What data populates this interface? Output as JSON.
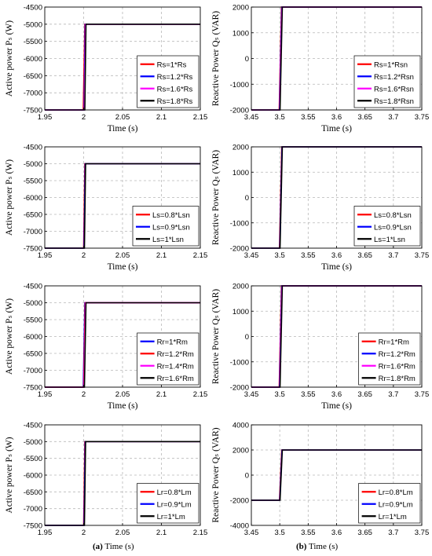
{
  "captions": {
    "a_label": "(a)",
    "a_text": "Time (s)",
    "b_label": "(b)",
    "b_text": "Time (s)"
  },
  "chart_data": [
    {
      "type": "line",
      "xlabel": "Time (s)",
      "ylabel": "Active power Pₛ (W)",
      "xlim": [
        1.95,
        2.15
      ],
      "ylim": [
        -7500,
        -4500
      ],
      "xticks": [
        1.95,
        2,
        2.05,
        2.1,
        2.15
      ],
      "xtick_labels": [
        "1.95",
        "2",
        "2.05",
        "2.1",
        "2.15"
      ],
      "yticks": [
        -7500,
        -7000,
        -6500,
        -6000,
        -5500,
        -5000,
        -4500
      ],
      "ytick_labels": [
        "-7500",
        "-7000",
        "-6500",
        "-6000",
        "-5500",
        "-5000",
        "-4500"
      ],
      "grid": true,
      "legend_position": "bottom-right",
      "series": [
        {
          "name": "Rs=1*Rs",
          "color": "#ff0000",
          "x": [
            1.95,
            1.9995,
            2.0015,
            2.15
          ],
          "y": [
            -7500,
            -7500,
            -5000,
            -5000
          ]
        },
        {
          "name": "Rs=1.2*Rs",
          "color": "#0000ff",
          "x": [
            1.95,
            2.0005,
            2.002,
            2.15
          ],
          "y": [
            -7500,
            -7500,
            -5000,
            -5000
          ]
        },
        {
          "name": "Rs=1.6*Rs",
          "color": "#ff00ff",
          "x": [
            1.95,
            2.001,
            2.0025,
            2.15
          ],
          "y": [
            -7500,
            -7500,
            -5000,
            -5000
          ]
        },
        {
          "name": "Rs=1.8*Rs",
          "color": "#000000",
          "x": [
            1.95,
            2.0015,
            2.003,
            2.15
          ],
          "y": [
            -7500,
            -7500,
            -5000,
            -5000
          ]
        }
      ]
    },
    {
      "type": "line",
      "xlabel": "Time (s)",
      "ylabel": "Reactive Power Qₛ (VAR)",
      "xlim": [
        3.45,
        3.75
      ],
      "ylim": [
        -2000,
        2000
      ],
      "xticks": [
        3.45,
        3.5,
        3.55,
        3.6,
        3.65,
        3.7,
        3.75
      ],
      "xtick_labels": [
        "3.45",
        "3.5",
        "3.55",
        "3.6",
        "3.65",
        "3.7",
        "3.75"
      ],
      "yticks": [
        -2000,
        -1000,
        0,
        1000,
        2000
      ],
      "ytick_labels": [
        "-2000",
        "-1000",
        "0",
        "1000",
        "2000"
      ],
      "grid": true,
      "legend_position": "bottom-right",
      "series": [
        {
          "name": "Rs=1*Rsn",
          "color": "#ff0000",
          "x": [
            3.45,
            3.499,
            3.503,
            3.75
          ],
          "y": [
            -2000,
            -2000,
            2000,
            2000
          ]
        },
        {
          "name": "Rs=1.2*Rsn",
          "color": "#0000ff",
          "x": [
            3.45,
            3.4995,
            3.5035,
            3.75
          ],
          "y": [
            -2000,
            -2000,
            2000,
            2000
          ]
        },
        {
          "name": "Rs=1.6*Rsn",
          "color": "#ff00ff",
          "x": [
            3.45,
            3.5,
            3.504,
            3.75
          ],
          "y": [
            -2000,
            -2000,
            2000,
            2000
          ]
        },
        {
          "name": "Rs=1.8*Rsn",
          "color": "#000000",
          "x": [
            3.45,
            3.5005,
            3.5045,
            3.75
          ],
          "y": [
            -2000,
            -2000,
            2000,
            2000
          ]
        }
      ]
    },
    {
      "type": "line",
      "xlabel": "Time (s)",
      "ylabel": "Active power Pₛ (W)",
      "xlim": [
        1.95,
        2.15
      ],
      "ylim": [
        -7500,
        -4500
      ],
      "xticks": [
        1.95,
        2,
        2.05,
        2.1,
        2.15
      ],
      "xtick_labels": [
        "1.95",
        "2",
        "2.05",
        "2.1",
        "2.15"
      ],
      "yticks": [
        -7500,
        -7000,
        -6500,
        -6000,
        -5500,
        -5000,
        -4500
      ],
      "ytick_labels": [
        "-7500",
        "-7000",
        "-6500",
        "-6000",
        "-5500",
        "-5000",
        "-4500"
      ],
      "grid": true,
      "legend_position": "bottom-right",
      "series": [
        {
          "name": "Ls=0.8*Lsn",
          "color": "#ff0000",
          "x": [
            1.95,
            2.0,
            2.0015,
            2.15
          ],
          "y": [
            -7500,
            -7500,
            -5000,
            -5000
          ]
        },
        {
          "name": "Ls=0.9*Lsn",
          "color": "#0000ff",
          "x": [
            1.95,
            2.0005,
            2.002,
            2.15
          ],
          "y": [
            -7500,
            -7500,
            -5000,
            -5000
          ]
        },
        {
          "name": "Ls=1*Lsn",
          "color": "#000000",
          "x": [
            1.95,
            2.001,
            2.0025,
            2.15
          ],
          "y": [
            -7500,
            -7500,
            -5000,
            -5000
          ]
        }
      ]
    },
    {
      "type": "line",
      "xlabel": "Time (s)",
      "ylabel": "Reactive Power Qₛ (VAR)",
      "xlim": [
        3.45,
        3.75
      ],
      "ylim": [
        -2000,
        2000
      ],
      "xticks": [
        3.45,
        3.5,
        3.55,
        3.6,
        3.65,
        3.7,
        3.75
      ],
      "xtick_labels": [
        "3.45",
        "3.5",
        "3.55",
        "3.6",
        "3.65",
        "3.7",
        "3.75"
      ],
      "yticks": [
        -2000,
        -1000,
        0,
        1000,
        2000
      ],
      "ytick_labels": [
        "-2000",
        "-1000",
        "0",
        "1000",
        "2000"
      ],
      "grid": true,
      "legend_position": "bottom-right",
      "series": [
        {
          "name": "Ls=0.8*Lsn",
          "color": "#ff0000",
          "x": [
            3.45,
            3.4995,
            3.5035,
            3.75
          ],
          "y": [
            -2000,
            -2000,
            2000,
            2000
          ]
        },
        {
          "name": "Ls=0.9*Lsn",
          "color": "#0000ff",
          "x": [
            3.45,
            3.5,
            3.504,
            3.75
          ],
          "y": [
            -2000,
            -2000,
            2000,
            2000
          ]
        },
        {
          "name": "Ls=1*Lsn",
          "color": "#000000",
          "x": [
            3.45,
            3.5005,
            3.5045,
            3.75
          ],
          "y": [
            -2000,
            -2000,
            2000,
            2000
          ]
        }
      ]
    },
    {
      "type": "line",
      "xlabel": "Time (s)",
      "ylabel": "Active power Pₛ (W)",
      "xlim": [
        1.95,
        2.15
      ],
      "ylim": [
        -7500,
        -4500
      ],
      "xticks": [
        1.95,
        2,
        2.05,
        2.1,
        2.15
      ],
      "xtick_labels": [
        "1.95",
        "2",
        "2.05",
        "2.1",
        "2.15"
      ],
      "yticks": [
        -7500,
        -7000,
        -6500,
        -6000,
        -5500,
        -5000,
        -4500
      ],
      "ytick_labels": [
        "-7500",
        "-7000",
        "-6500",
        "-6000",
        "-5500",
        "-5000",
        "-4500"
      ],
      "grid": true,
      "legend_position": "bottom-right",
      "series": [
        {
          "name": "Rr=1*Rm",
          "color": "#0000ff",
          "x": [
            1.95,
            1.9995,
            2.0015,
            2.15
          ],
          "y": [
            -7500,
            -7500,
            -5000,
            -5000
          ]
        },
        {
          "name": "Rr=1.2*Rm",
          "color": "#ff0000",
          "x": [
            1.95,
            2.0,
            2.002,
            2.15
          ],
          "y": [
            -7500,
            -7500,
            -5000,
            -5000
          ]
        },
        {
          "name": "Rr=1.4*Rm",
          "color": "#ff00ff",
          "x": [
            1.95,
            2.0005,
            2.0025,
            2.15
          ],
          "y": [
            -7500,
            -7500,
            -5000,
            -5000
          ]
        },
        {
          "name": "Rr=1.6*Rm",
          "color": "#000000",
          "x": [
            1.95,
            2.001,
            2.003,
            2.15
          ],
          "y": [
            -7500,
            -7500,
            -5000,
            -5000
          ]
        }
      ]
    },
    {
      "type": "line",
      "xlabel": "Time (s)",
      "ylabel": "Reactive Power Qₛ (VAR)",
      "xlim": [
        3.45,
        3.75
      ],
      "ylim": [
        -2000,
        2000
      ],
      "xticks": [
        3.45,
        3.5,
        3.55,
        3.6,
        3.65,
        3.7,
        3.75
      ],
      "xtick_labels": [
        "3.45",
        "3.5",
        "3.55",
        "3.6",
        "3.65",
        "3.7",
        "3.75"
      ],
      "yticks": [
        -2000,
        -1000,
        0,
        1000,
        2000
      ],
      "ytick_labels": [
        "-2000",
        "-1000",
        "0",
        "1000",
        "2000"
      ],
      "grid": true,
      "legend_position": "bottom-right",
      "series": [
        {
          "name": "Rr=1*Rm",
          "color": "#ff0000",
          "x": [
            3.45,
            3.499,
            3.503,
            3.75
          ],
          "y": [
            -2000,
            -2000,
            2000,
            2000
          ]
        },
        {
          "name": "Rr=1.2*Rm",
          "color": "#0000ff",
          "x": [
            3.45,
            3.4995,
            3.5035,
            3.75
          ],
          "y": [
            -2000,
            -2000,
            2000,
            2000
          ]
        },
        {
          "name": "Rr=1.6*Rm",
          "color": "#ff00ff",
          "x": [
            3.45,
            3.5,
            3.504,
            3.75
          ],
          "y": [
            -2000,
            -2000,
            2000,
            2000
          ]
        },
        {
          "name": "Rr=1.8*Rm",
          "color": "#000000",
          "x": [
            3.45,
            3.5005,
            3.5045,
            3.75
          ],
          "y": [
            -2000,
            -2000,
            2000,
            2000
          ]
        }
      ]
    },
    {
      "type": "line",
      "xlabel": "",
      "ylabel": "Active power Pₛ (W)",
      "xlim": [
        1.95,
        2.15
      ],
      "ylim": [
        -7500,
        -4500
      ],
      "xticks": [
        1.95,
        2,
        2.05,
        2.1,
        2.15
      ],
      "xtick_labels": [
        "1.95",
        "2",
        "2.05",
        "2.1",
        "2.15"
      ],
      "yticks": [
        -7500,
        -7000,
        -6500,
        -6000,
        -5500,
        -5000,
        -4500
      ],
      "ytick_labels": [
        "-7500",
        "-7000",
        "-6500",
        "-6000",
        "-5500",
        "-5000",
        "-4500"
      ],
      "grid": true,
      "legend_position": "bottom-right",
      "series": [
        {
          "name": "Lr=0.8*Lm",
          "color": "#ff0000",
          "x": [
            1.95,
            2.0,
            2.0015,
            2.15
          ],
          "y": [
            -7500,
            -7500,
            -5000,
            -5000
          ]
        },
        {
          "name": "Lr=0.9*Lm",
          "color": "#0000ff",
          "x": [
            1.95,
            2.0005,
            2.002,
            2.15
          ],
          "y": [
            -7500,
            -7500,
            -5000,
            -5000
          ]
        },
        {
          "name": "Lr=1*Lm",
          "color": "#000000",
          "x": [
            1.95,
            2.001,
            2.0025,
            2.15
          ],
          "y": [
            -7500,
            -7500,
            -5000,
            -5000
          ]
        }
      ]
    },
    {
      "type": "line",
      "xlabel": "",
      "ylabel": "Reactive Power Qₛ (VAR)",
      "xlim": [
        3.45,
        3.75
      ],
      "ylim": [
        -4000,
        4000
      ],
      "xticks": [
        3.45,
        3.5,
        3.55,
        3.6,
        3.65,
        3.7,
        3.75
      ],
      "xtick_labels": [
        "3.45",
        "3.5",
        "3.55",
        "3.6",
        "3.65",
        "3.7",
        "3.75"
      ],
      "yticks": [
        -4000,
        -2000,
        0,
        2000,
        4000
      ],
      "ytick_labels": [
        "-4000",
        "-2000",
        "0",
        "2000",
        "4000"
      ],
      "grid": true,
      "legend_position": "bottom-right",
      "series": [
        {
          "name": "Lr=0.8*Lm",
          "color": "#ff0000",
          "x": [
            3.45,
            3.4995,
            3.5035,
            3.75
          ],
          "y": [
            -2000,
            -2000,
            2000,
            2000
          ]
        },
        {
          "name": "Lr=0.9*Lm",
          "color": "#0000ff",
          "x": [
            3.45,
            3.5,
            3.504,
            3.75
          ],
          "y": [
            -2000,
            -2000,
            2000,
            2000
          ]
        },
        {
          "name": "Lr=1*Lm",
          "color": "#000000",
          "x": [
            3.45,
            3.5005,
            3.5045,
            3.75
          ],
          "y": [
            -2000,
            -2000,
            2000,
            2000
          ]
        }
      ]
    }
  ]
}
